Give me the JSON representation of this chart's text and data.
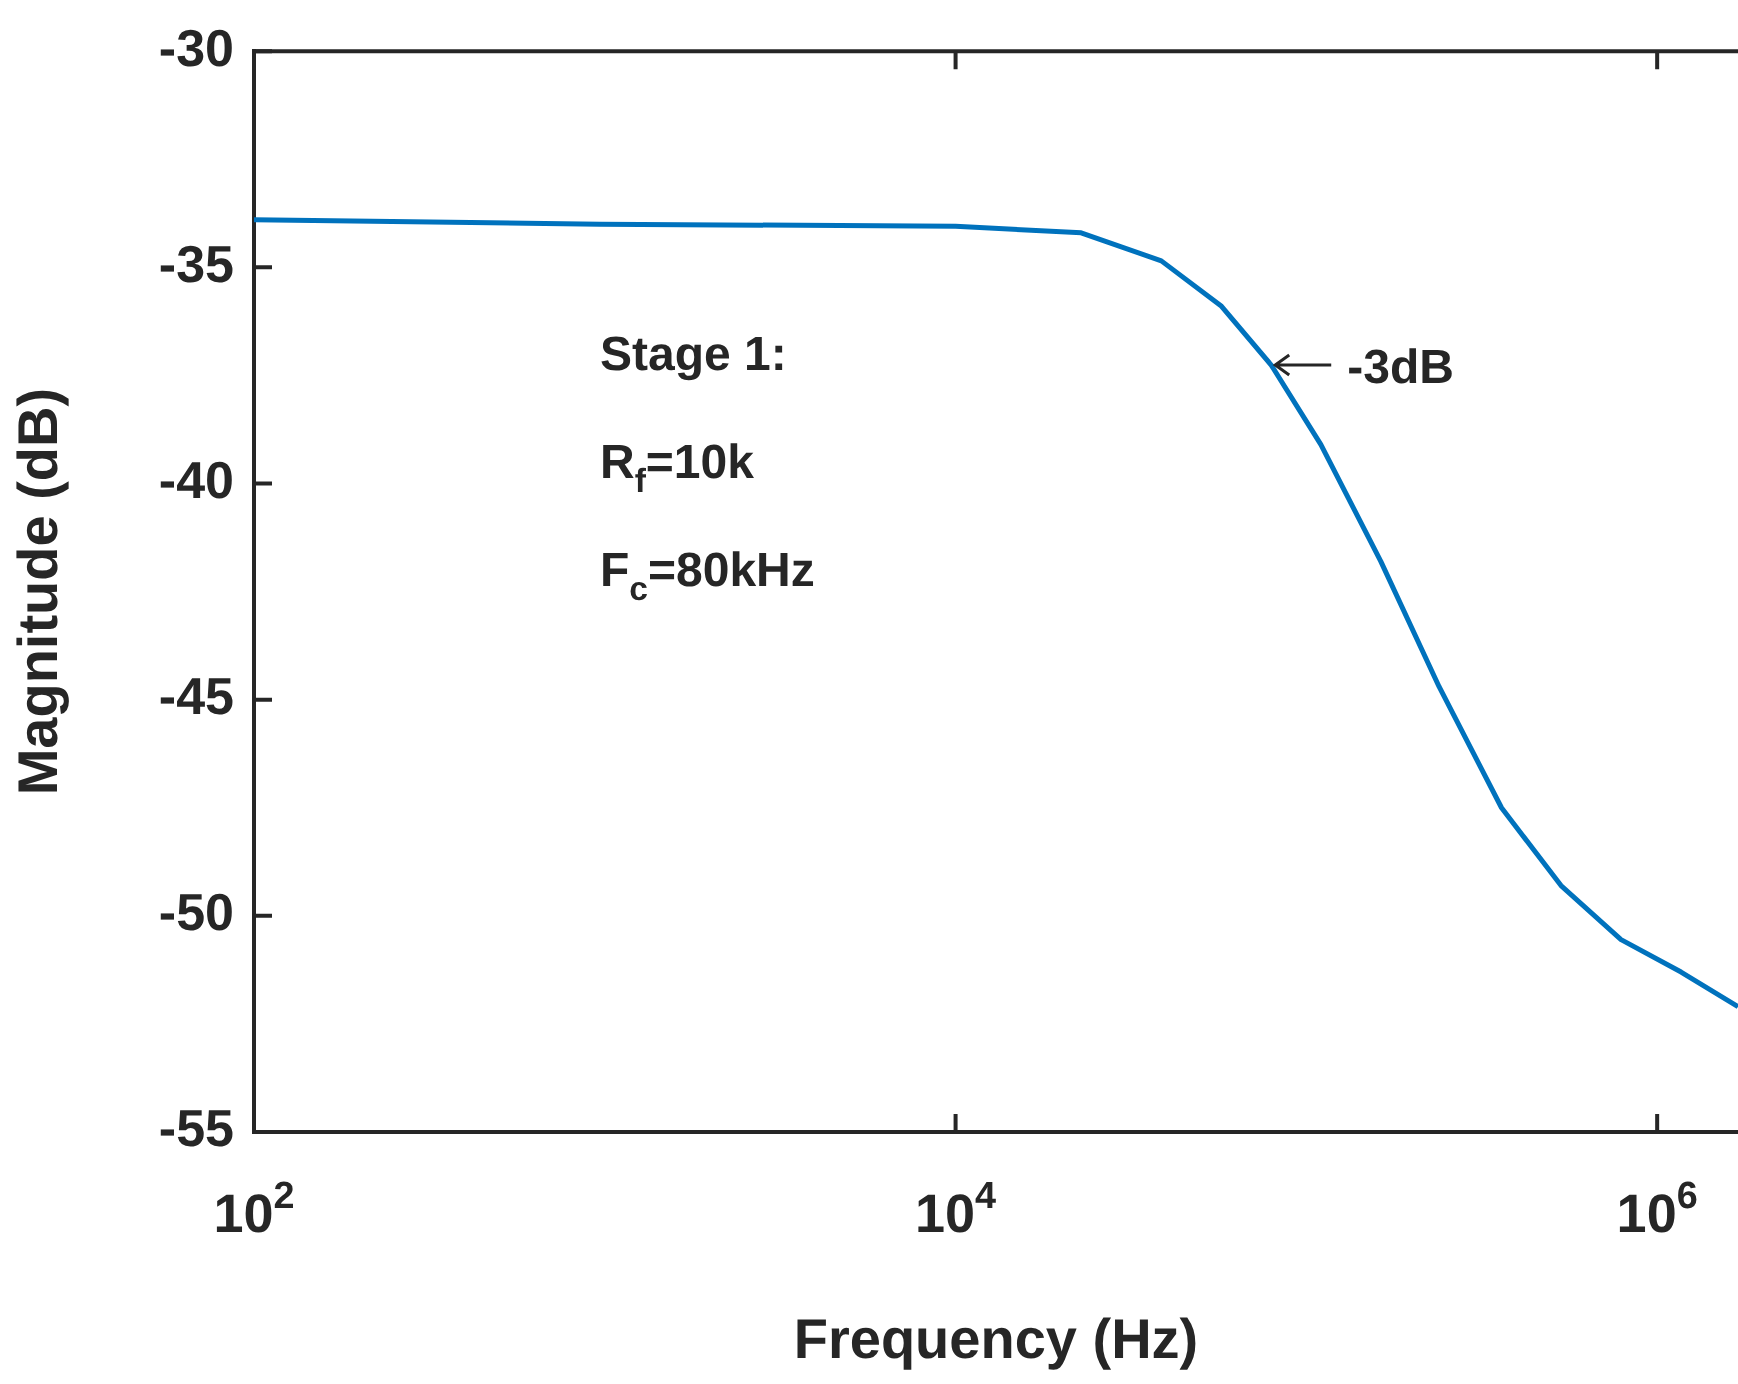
{
  "chart_data": {
    "type": "line",
    "xlabel": "Frequency (Hz)",
    "ylabel": "Magnitude (dB)",
    "log": "x",
    "xlim": [
      100,
      1700000
    ],
    "xticks": [
      {
        "value": 100,
        "label": "10$^{2}$"
      },
      {
        "value": 10000,
        "label": "10$^{4}$"
      },
      {
        "value": 1000000,
        "label": "10$^{6}$"
      }
    ],
    "ylim": [
      -55,
      -30
    ],
    "yticks": [
      -55,
      -50,
      -45,
      -40,
      -35,
      -30
    ],
    "grid": false,
    "legend": false,
    "marker": "none",
    "line_style": "solid",
    "x": [
      100,
      968,
      10000,
      22800,
      38600,
      57300,
      79400,
      110000,
      163000,
      239000,
      360000,
      532000,
      789000,
      1170000,
      1700000
    ],
    "series": [
      {
        "color": "#0072bd",
        "values": [
          -33.9,
          -34.0,
          -34.05,
          -34.2,
          -34.85,
          -35.9,
          -37.26,
          -39.1,
          -41.8,
          -44.7,
          -47.5,
          -49.3,
          -50.55,
          -51.3,
          -52.1
        ]
      }
    ],
    "annotations": [
      "Stage 1:",
      "R$_{f}$=10k",
      "F$_{c}$=80kHz",
      {
        "text": "-3dB",
        "x": 79400,
        "y": -37.26
      }
    ]
  }
}
